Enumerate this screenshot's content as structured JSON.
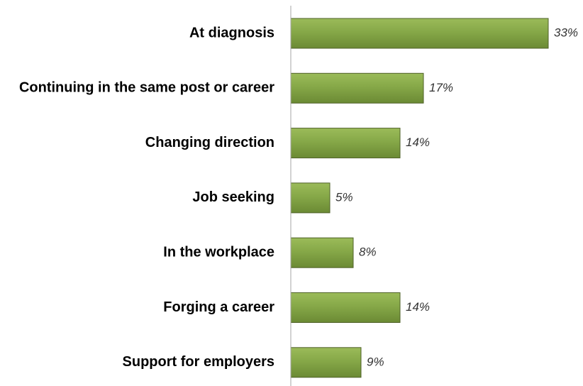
{
  "chart_data": {
    "type": "bar",
    "orientation": "horizontal",
    "categories": [
      "At diagnosis",
      "Continuing in the same post or career",
      "Changing direction",
      "Job seeking",
      "In the workplace",
      "Forging a career",
      "Support for employers"
    ],
    "values": [
      33,
      17,
      14,
      5,
      8,
      14,
      9
    ],
    "value_labels": [
      "33%",
      "17%",
      "14%",
      "5%",
      "8%",
      "14%",
      "9%"
    ],
    "unit": "%",
    "title": "",
    "xlabel": "",
    "ylabel": "",
    "xlim": [
      0,
      35
    ],
    "grid": false,
    "legend": "none",
    "bar_color": "#77933c",
    "bar_highlight_color": "#9bbb59",
    "bar_border_color": "#4f6228",
    "axis_color": "#a6a6a6"
  }
}
